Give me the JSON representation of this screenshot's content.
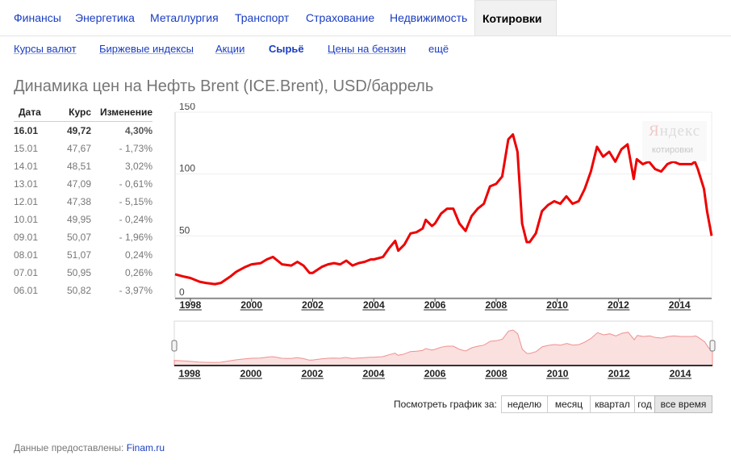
{
  "topnav": {
    "items": [
      "Финансы",
      "Энергетика",
      "Металлургия",
      "Транспорт",
      "Страхование",
      "Недвижимость"
    ],
    "active": "Котировки"
  },
  "subnav": {
    "items": [
      "Курсы валют",
      "Биржевые индексы",
      "Акции",
      "Сырьё",
      "Цены на бензин",
      "ещё"
    ]
  },
  "title": "Динамика цен на Нефть Brent (ICE.Brent), USD/баррель",
  "table": {
    "headers": [
      "Дата",
      "Курс",
      "Изменение"
    ],
    "rows": [
      {
        "date": "16.01",
        "rate": "49,72",
        "change": "4,30%"
      },
      {
        "date": "15.01",
        "rate": "47,67",
        "change": "- 1,73%"
      },
      {
        "date": "14.01",
        "rate": "48,51",
        "change": "3,02%"
      },
      {
        "date": "13.01",
        "rate": "47,09",
        "change": "- 0,61%"
      },
      {
        "date": "12.01",
        "rate": "47,38",
        "change": "- 5,15%"
      },
      {
        "date": "10.01",
        "rate": "49,95",
        "change": "- 0,24%"
      },
      {
        "date": "09.01",
        "rate": "50,07",
        "change": "- 1,96%"
      },
      {
        "date": "08.01",
        "rate": "51,07",
        "change": "0,24%"
      },
      {
        "date": "07.01",
        "rate": "50,95",
        "change": "0,26%"
      },
      {
        "date": "06.01",
        "rate": "50,82",
        "change": "- 3,97%"
      }
    ]
  },
  "watermark": {
    "brand_first": "Я",
    "brand_rest": "ндекс",
    "sub": "котировки"
  },
  "chart_data": {
    "type": "line",
    "title": "",
    "xlabel": "",
    "ylabel": "",
    "ylim": [
      0,
      150
    ],
    "xlim": [
      1997.5,
      2015.05
    ],
    "yticks": [
      "150",
      "100",
      "50",
      "0"
    ],
    "xticks": [
      "1998",
      "2000",
      "2002",
      "2004",
      "2006",
      "2008",
      "2010",
      "2012",
      "2014"
    ],
    "color": "#ee0000",
    "series": [
      {
        "name": "",
        "x": [
          1997.5,
          1997.8,
          1998.0,
          1998.3,
          1998.5,
          1998.8,
          1999.0,
          1999.3,
          1999.5,
          1999.8,
          2000.0,
          2000.3,
          2000.5,
          2000.7,
          2000.9,
          2001.0,
          2001.3,
          2001.5,
          2001.7,
          2001.9,
          2002.0,
          2002.3,
          2002.5,
          2002.7,
          2002.9,
          2003.1,
          2003.3,
          2003.5,
          2003.7,
          2003.9,
          2004.0,
          2004.3,
          2004.5,
          2004.7,
          2004.8,
          2005.0,
          2005.2,
          2005.4,
          2005.6,
          2005.7,
          2005.9,
          2006.0,
          2006.2,
          2006.4,
          2006.6,
          2006.8,
          2007.0,
          2007.2,
          2007.4,
          2007.6,
          2007.8,
          2008.0,
          2008.2,
          2008.4,
          2008.55,
          2008.7,
          2008.85,
          2009.0,
          2009.1,
          2009.3,
          2009.5,
          2009.7,
          2009.9,
          2010.1,
          2010.3,
          2010.5,
          2010.7,
          2010.9,
          2011.1,
          2011.3,
          2011.5,
          2011.7,
          2011.9,
          2012.1,
          2012.3,
          2012.5,
          2012.6,
          2012.8,
          2013.0,
          2013.2,
          2013.4,
          2013.6,
          2013.8,
          2014.0,
          2014.2,
          2014.4,
          2014.5,
          2014.6,
          2014.8,
          2014.9,
          2015.05
        ],
        "y": [
          19,
          17,
          16,
          13,
          12,
          11,
          12,
          17,
          21,
          25,
          27,
          28,
          31,
          33,
          29,
          27,
          26,
          29,
          26,
          20,
          20,
          25,
          27,
          28,
          27,
          30,
          26,
          28,
          29,
          31,
          31,
          33,
          40,
          46,
          38,
          43,
          52,
          53,
          56,
          63,
          58,
          60,
          68,
          72,
          72,
          60,
          54,
          66,
          72,
          76,
          90,
          92,
          98,
          128,
          132,
          118,
          60,
          45,
          45,
          52,
          70,
          75,
          78,
          76,
          82,
          76,
          78,
          88,
          102,
          122,
          114,
          118,
          110,
          120,
          124,
          96,
          112,
          108,
          110,
          104,
          102,
          108,
          110,
          108,
          108,
          108,
          110,
          104,
          88,
          70,
          50
        ]
      }
    ]
  },
  "navigator": {
    "xticks": [
      "1998",
      "2000",
      "2002",
      "2004",
      "2006",
      "2008",
      "2010",
      "2012",
      "2014"
    ]
  },
  "periods": {
    "label": "Посмотреть график за:",
    "buttons": [
      "неделю",
      "месяц",
      "квартал",
      "год",
      "все время"
    ],
    "selected": "все время"
  },
  "footer": {
    "label": "Данные предоставлены:",
    "source": "Finam.ru"
  }
}
